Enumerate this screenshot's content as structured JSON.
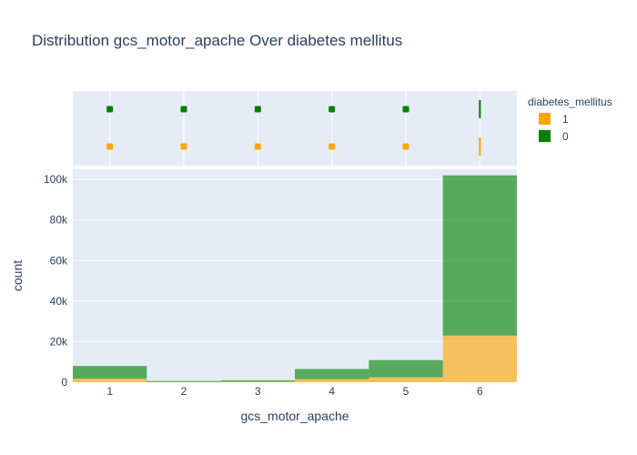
{
  "chart_data": {
    "type": "bar",
    "barmode": "stack",
    "title": "Distribution gcs_motor_apache Over diabetes mellitus",
    "xlabel": "gcs_motor_apache",
    "ylabel": "count",
    "categories": [
      "1",
      "2",
      "3",
      "4",
      "5",
      "6"
    ],
    "ylim": [
      0,
      105000
    ],
    "yticks": [
      0,
      20000,
      40000,
      60000,
      80000,
      100000
    ],
    "ytick_labels": [
      "0",
      "20k",
      "40k",
      "60k",
      "80k",
      "100k"
    ],
    "grid": true,
    "legend_title": "diabetes_mellitus",
    "legend_position": "top-right",
    "series": [
      {
        "name": "1",
        "color": "#FFA500",
        "values": [
          1700,
          150,
          250,
          1500,
          2400,
          23000
        ]
      },
      {
        "name": "0",
        "color": "#008000",
        "values": [
          6300,
          450,
          650,
          5000,
          8500,
          79000
        ]
      }
    ],
    "marginal_rug": {
      "series_order_top_to_bottom": [
        "0",
        "1"
      ],
      "x_values": [
        1,
        2,
        3,
        4,
        5,
        6
      ],
      "last_category_style": "line"
    }
  }
}
